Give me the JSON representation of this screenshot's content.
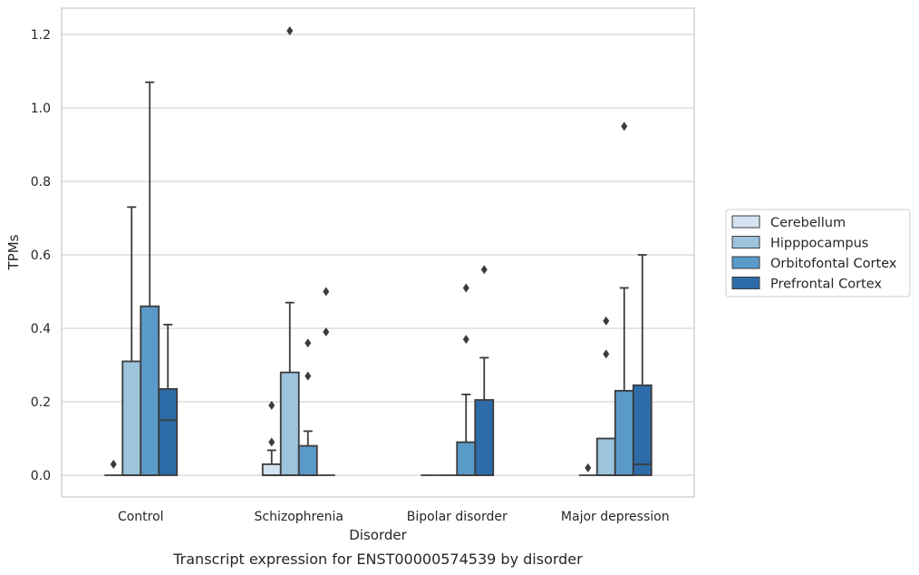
{
  "chart_data": {
    "type": "box",
    "title": "",
    "caption": "Transcript expression for ENST00000574539 by disorder",
    "xlabel": "Disorder",
    "ylabel": "TPMs",
    "ylim": [
      -0.06,
      1.27
    ],
    "yticks": [
      "0.0",
      "0.2",
      "0.4",
      "0.6",
      "0.8",
      "1.0",
      "1.2"
    ],
    "grid": "horizontal",
    "legend_position": "right",
    "categories": [
      "Control",
      "Schizophrenia",
      "Bipolar disorder",
      "Major depression"
    ],
    "series": [
      {
        "name": "Cerebellum",
        "color": "#d4e3f1",
        "boxes": [
          {
            "q1": 0.0,
            "median": 0.0,
            "q3": 0.0,
            "whisker_low": 0.0,
            "whisker_high": 0.0,
            "outliers": [
              0.03
            ]
          },
          {
            "q1": 0.0,
            "median": 0.0,
            "q3": 0.03,
            "whisker_low": 0.0,
            "whisker_high": 0.068,
            "outliers": [
              0.09,
              0.19
            ]
          },
          {
            "q1": 0.0,
            "median": 0.0,
            "q3": 0.0,
            "whisker_low": 0.0,
            "whisker_high": 0.0,
            "outliers": []
          },
          {
            "q1": 0.0,
            "median": 0.0,
            "q3": 0.0,
            "whisker_low": 0.0,
            "whisker_high": 0.0,
            "outliers": [
              0.02
            ]
          }
        ]
      },
      {
        "name": "Hipppocampus",
        "color": "#9cc4dc",
        "boxes": [
          {
            "q1": 0.0,
            "median": 0.0,
            "q3": 0.31,
            "whisker_low": 0.0,
            "whisker_high": 0.73,
            "outliers": []
          },
          {
            "q1": 0.0,
            "median": 0.0,
            "q3": 0.28,
            "whisker_low": 0.0,
            "whisker_high": 0.47,
            "outliers": [
              1.21
            ]
          },
          {
            "q1": 0.0,
            "median": 0.0,
            "q3": 0.0,
            "whisker_low": 0.0,
            "whisker_high": 0.0,
            "outliers": []
          },
          {
            "q1": 0.0,
            "median": 0.0,
            "q3": 0.1,
            "whisker_low": 0.0,
            "whisker_high": 0.1,
            "outliers": [
              0.33,
              0.42
            ]
          }
        ]
      },
      {
        "name": "Orbitofontal Cortex",
        "color": "#5a9ac9",
        "boxes": [
          {
            "q1": 0.0,
            "median": 0.0,
            "q3": 0.46,
            "whisker_low": 0.0,
            "whisker_high": 1.07,
            "outliers": []
          },
          {
            "q1": 0.0,
            "median": 0.0,
            "q3": 0.08,
            "whisker_low": 0.0,
            "whisker_high": 0.12,
            "outliers": [
              0.27,
              0.36
            ]
          },
          {
            "q1": 0.0,
            "median": 0.0,
            "q3": 0.09,
            "whisker_low": 0.0,
            "whisker_high": 0.22,
            "outliers": [
              0.37,
              0.51
            ]
          },
          {
            "q1": 0.0,
            "median": 0.0,
            "q3": 0.23,
            "whisker_low": 0.0,
            "whisker_high": 0.51,
            "outliers": [
              0.95
            ]
          }
        ]
      },
      {
        "name": "Prefrontal Cortex",
        "color": "#2d6ca8",
        "boxes": [
          {
            "q1": 0.0,
            "median": 0.15,
            "q3": 0.235,
            "whisker_low": 0.0,
            "whisker_high": 0.41,
            "outliers": []
          },
          {
            "q1": 0.0,
            "median": 0.0,
            "q3": 0.0,
            "whisker_low": 0.0,
            "whisker_high": 0.0,
            "outliers": [
              0.39,
              0.5
            ]
          },
          {
            "q1": 0.0,
            "median": 0.0,
            "q3": 0.205,
            "whisker_low": 0.0,
            "whisker_high": 0.32,
            "outliers": [
              0.56
            ]
          },
          {
            "q1": 0.0,
            "median": 0.03,
            "q3": 0.245,
            "whisker_low": 0.0,
            "whisker_high": 0.6,
            "outliers": []
          }
        ]
      }
    ]
  }
}
